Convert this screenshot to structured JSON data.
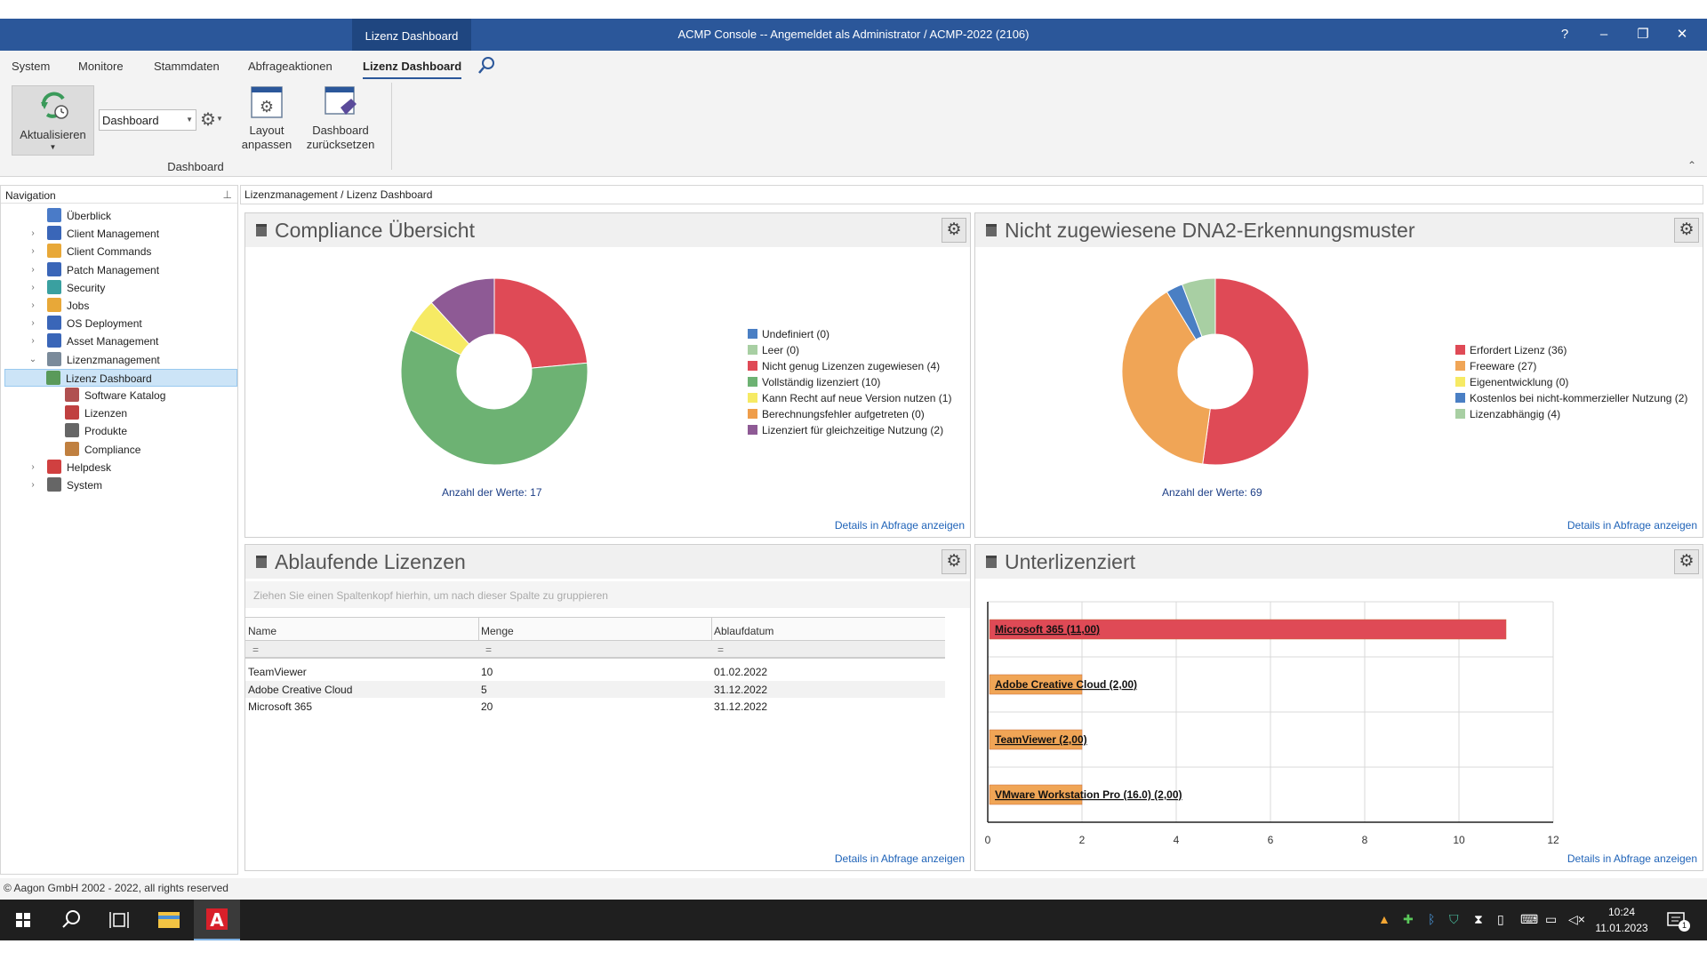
{
  "titlebar": {
    "context_tab": "Lizenz Dashboard",
    "title": "ACMP Console -- Angemeldet als Administrator / ACMP-2022 (2106)",
    "help": "?",
    "minimize": "–",
    "restore": "❐",
    "close": "✕"
  },
  "menu": [
    "System",
    "Monitore",
    "Stammdaten",
    "Abfrageaktionen",
    "Lizenz Dashboard"
  ],
  "ribbon": {
    "refresh_label": "Aktualisieren",
    "dropdown_value": "Dashboard",
    "layout_line1": "Layout",
    "layout_line2": "anpassen",
    "reset_line1": "Dashboard",
    "reset_line2": "zurücksetzen",
    "group_label": "Dashboard"
  },
  "nav": {
    "header": "Navigation",
    "items": [
      {
        "label": "Überblick",
        "icon": "overview-icon",
        "color": "#4a7bc8"
      },
      {
        "label": "Client Management",
        "icon": "monitor-icon",
        "color": "#3a66b8"
      },
      {
        "label": "Client Commands",
        "icon": "puzzle-icon",
        "color": "#e8a838"
      },
      {
        "label": "Patch Management",
        "icon": "patch-icon",
        "color": "#3a66b8"
      },
      {
        "label": "Security",
        "icon": "shield-icon",
        "color": "#3aa0a0"
      },
      {
        "label": "Jobs",
        "icon": "jobs-icon",
        "color": "#e8a838"
      },
      {
        "label": "OS Deployment",
        "icon": "deployment-icon",
        "color": "#3a66b8"
      },
      {
        "label": "Asset Management",
        "icon": "asset-icon",
        "color": "#3a66b8"
      },
      {
        "label": "Lizenzmanagement",
        "icon": "license-icon",
        "color": "#7a8a9a"
      },
      {
        "label": "Lizenz Dashboard",
        "icon": "dashboard-icon",
        "color": "#5a9a5a"
      },
      {
        "label": "Software Katalog",
        "icon": "catalog-icon",
        "color": "#b05050"
      },
      {
        "label": "Lizenzen",
        "icon": "licenses-icon",
        "color": "#c04040"
      },
      {
        "label": "Produkte",
        "icon": "products-icon",
        "color": "#666666"
      },
      {
        "label": "Compliance",
        "icon": "compliance-icon",
        "color": "#c08040"
      },
      {
        "label": "Helpdesk",
        "icon": "helpdesk-icon",
        "color": "#d04040"
      },
      {
        "label": "System",
        "icon": "system-icon",
        "color": "#666666"
      }
    ]
  },
  "breadcrumb": "Lizenzmanagement / Lizenz Dashboard",
  "panels": {
    "compliance": {
      "title": "Compliance Übersicht",
      "count": "Anzahl der Werte: 17",
      "details": "Details in Abfrage anzeigen"
    },
    "dna": {
      "title": "Nicht zugewiesene DNA2-Erkennungsmuster",
      "count": "Anzahl der Werte: 69",
      "details": "Details in Abfrage anzeigen"
    },
    "expiring": {
      "title": "Ablaufende Lizenzen",
      "group_hint": "Ziehen Sie einen Spaltenkopf hierhin, um nach dieser Spalte zu gruppieren",
      "columns": [
        "Name",
        "Menge",
        "Ablaufdatum"
      ],
      "filter": "=",
      "rows": [
        [
          "TeamViewer",
          "10",
          "01.02.2022"
        ],
        [
          "Adobe Creative Cloud",
          "5",
          "31.12.2022"
        ],
        [
          "Microsoft 365",
          "20",
          "31.12.2022"
        ]
      ],
      "details": "Details in Abfrage anzeigen"
    },
    "underlicensed": {
      "title": "Unterlizenziert",
      "details": "Details in Abfrage anzeigen"
    }
  },
  "chart_data": [
    {
      "type": "pie",
      "title": "Compliance Übersicht",
      "labels": [
        "Undefiniert (0)",
        "Leer (0)",
        "Nicht genug Lizenzen zugewiesen (4)",
        "Vollständig lizenziert (10)",
        "Kann Recht auf neue Version nutzen (1)",
        "Berechnungsfehler aufgetreten (0)",
        "Lizenziert für gleichzeitige Nutzung (2)"
      ],
      "values": [
        0,
        0,
        4,
        10,
        1,
        0,
        2
      ],
      "colors": [
        "#4a7fc4",
        "#a8cfa3",
        "#df4a56",
        "#6db273",
        "#f6ea64",
        "#ef9d4a",
        "#8e5a95"
      ],
      "legend": "right"
    },
    {
      "type": "pie",
      "title": "Nicht zugewiesene DNA2-Erkennungsmuster",
      "labels": [
        "Erfordert Lizenz (36)",
        "Freeware (27)",
        "Eigenentwicklung (0)",
        "Kostenlos bei nicht-kommerzieller Nutzung (2)",
        "Lizenzabhängig (4)"
      ],
      "values": [
        36,
        27,
        0,
        2,
        4
      ],
      "colors": [
        "#df4a56",
        "#f0a556",
        "#f6ea64",
        "#4a7fc4",
        "#a8cfa3"
      ],
      "legend": "right"
    },
    {
      "type": "bar",
      "orientation": "horizontal",
      "title": "Unterlizenziert",
      "categories": [
        "Microsoft 365 (11,00)",
        "Adobe Creative Cloud (2,00)",
        "TeamViewer (2,00)",
        "VMware Workstation Pro (16.0) (2,00)"
      ],
      "values": [
        11,
        2,
        2,
        2
      ],
      "colors": [
        "#df4a56",
        "#f0a556",
        "#f0a556",
        "#f0a556"
      ],
      "xlim": [
        0,
        12
      ],
      "xticks": [
        "0",
        "2",
        "4",
        "6",
        "8",
        "10",
        "12"
      ],
      "grid": true
    }
  ],
  "statusbar": "© Aagon GmbH 2002 - 2022, all rights reserved",
  "taskbar": {
    "time": "10:24",
    "date": "11.01.2023",
    "notification_count": "1"
  }
}
